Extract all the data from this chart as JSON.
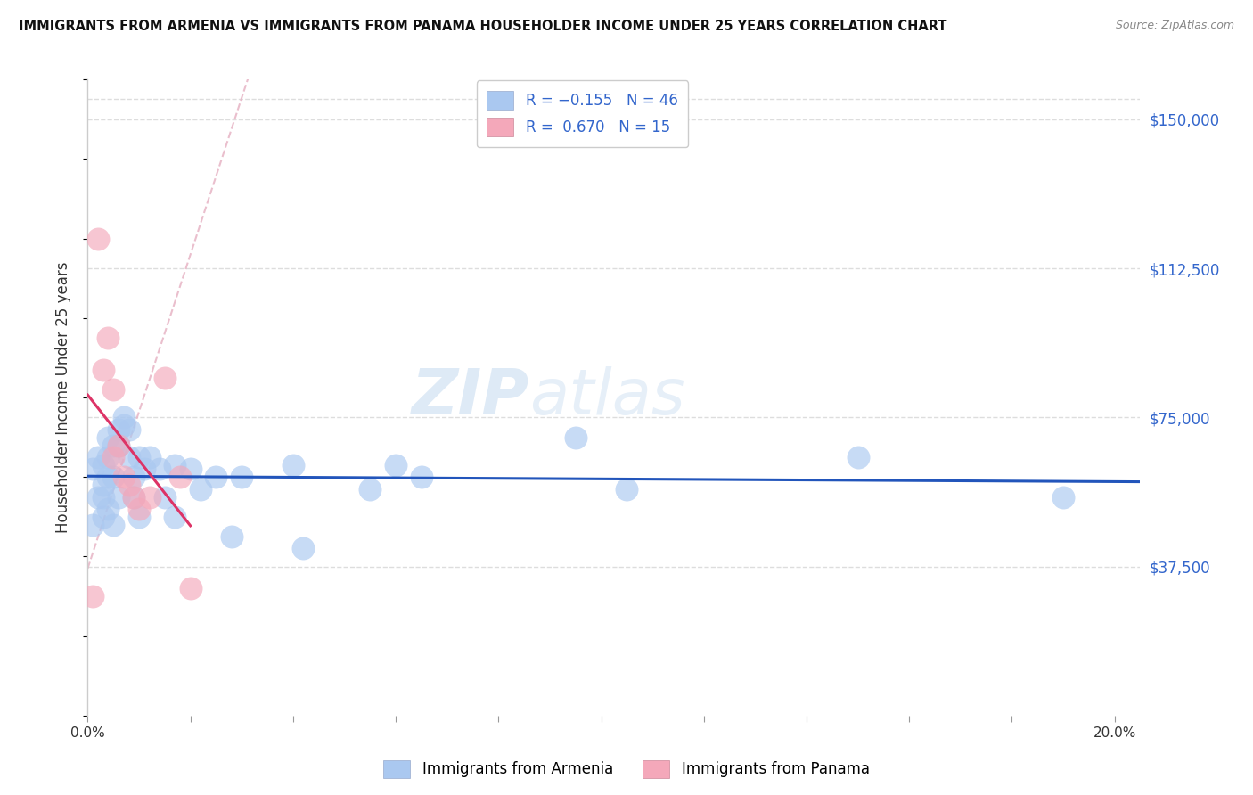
{
  "title": "IMMIGRANTS FROM ARMENIA VS IMMIGRANTS FROM PANAMA HOUSEHOLDER INCOME UNDER 25 YEARS CORRELATION CHART",
  "source": "Source: ZipAtlas.com",
  "ylabel": "Householder Income Under 25 years",
  "xlabel_ticks": [
    "0.0%",
    "",
    "",
    "",
    "",
    "",
    "",
    "",
    "",
    "",
    "20.0%"
  ],
  "xlabel_vals": [
    0.0,
    0.02,
    0.04,
    0.06,
    0.08,
    0.1,
    0.12,
    0.14,
    0.16,
    0.18,
    0.2
  ],
  "ytick_labels": [
    "$37,500",
    "$75,000",
    "$112,500",
    "$150,000"
  ],
  "ytick_vals": [
    37500,
    75000,
    112500,
    150000
  ],
  "ymin": 0,
  "ymax": 160000,
  "xmin": 0.0,
  "xmax": 0.205,
  "armenia_color": "#aac8f0",
  "panama_color": "#f4a8ba",
  "trendline_armenia_color": "#2255bb",
  "trendline_panama_color": "#dd3366",
  "diagonal_color": "#e8b8c8",
  "R_armenia": -0.155,
  "N_armenia": 46,
  "R_panama": 0.67,
  "N_panama": 15,
  "legend_armenia": "Immigrants from Armenia",
  "legend_panama": "Immigrants from Panama",
  "armenia_x": [
    0.001,
    0.001,
    0.002,
    0.002,
    0.003,
    0.003,
    0.003,
    0.003,
    0.004,
    0.004,
    0.004,
    0.004,
    0.005,
    0.005,
    0.005,
    0.006,
    0.006,
    0.006,
    0.007,
    0.007,
    0.008,
    0.008,
    0.009,
    0.009,
    0.01,
    0.01,
    0.011,
    0.012,
    0.014,
    0.015,
    0.017,
    0.017,
    0.02,
    0.022,
    0.025,
    0.028,
    0.03,
    0.04,
    0.042,
    0.055,
    0.06,
    0.065,
    0.095,
    0.105,
    0.15,
    0.19
  ],
  "armenia_y": [
    48000,
    62000,
    55000,
    65000,
    58000,
    63000,
    55000,
    50000,
    70000,
    65000,
    60000,
    52000,
    68000,
    60000,
    48000,
    72000,
    68000,
    55000,
    75000,
    73000,
    72000,
    65000,
    60000,
    55000,
    65000,
    50000,
    62000,
    65000,
    62000,
    55000,
    63000,
    50000,
    62000,
    57000,
    60000,
    45000,
    60000,
    63000,
    42000,
    57000,
    63000,
    60000,
    70000,
    57000,
    65000,
    55000
  ],
  "panama_x": [
    0.001,
    0.002,
    0.003,
    0.004,
    0.005,
    0.005,
    0.006,
    0.007,
    0.008,
    0.009,
    0.01,
    0.012,
    0.015,
    0.018,
    0.02
  ],
  "panama_y": [
    30000,
    120000,
    87000,
    95000,
    82000,
    65000,
    68000,
    60000,
    58000,
    55000,
    52000,
    55000,
    85000,
    60000,
    32000
  ]
}
